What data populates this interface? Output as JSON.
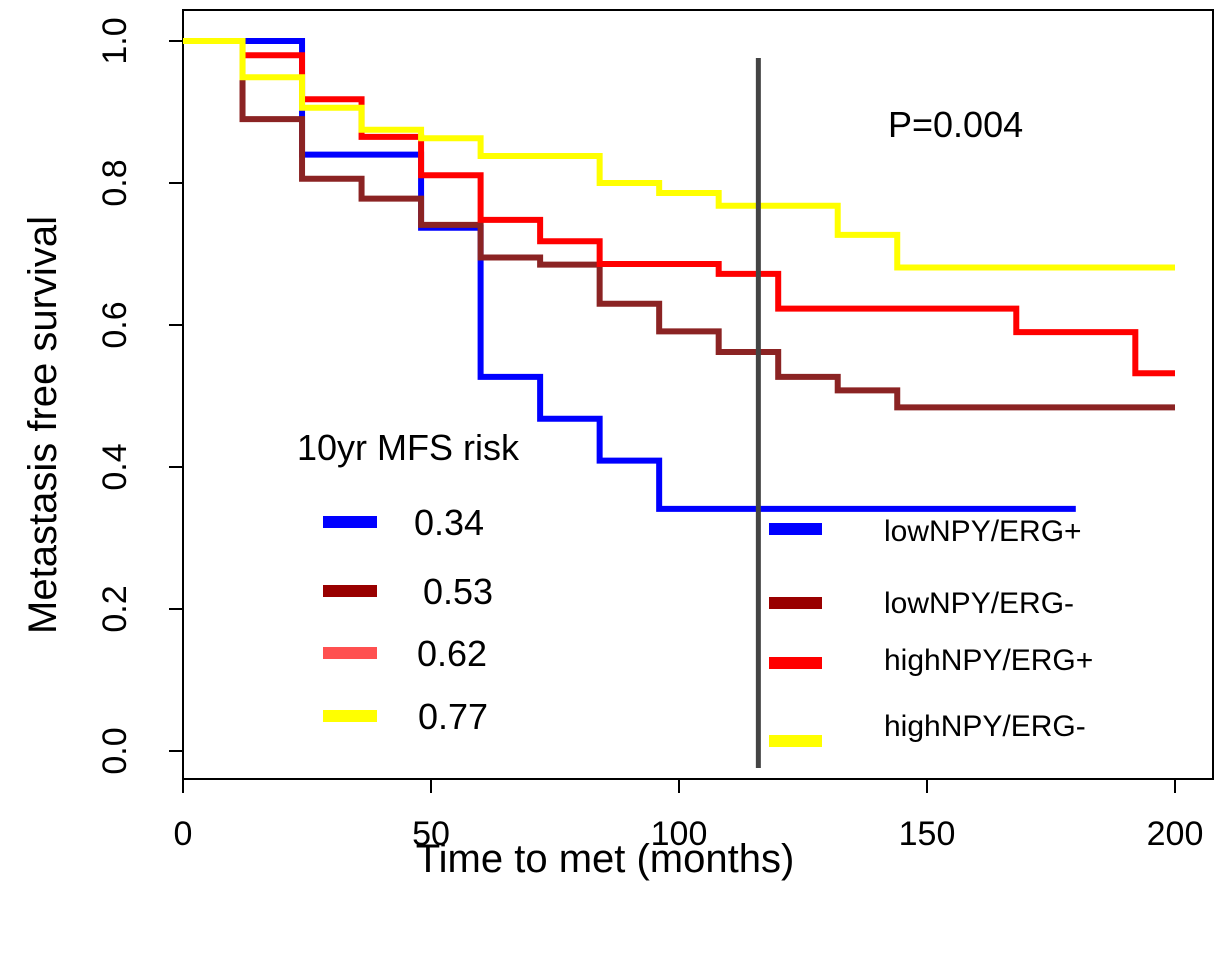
{
  "chart_data": {
    "type": "line",
    "subtype": "kaplan-meier-step",
    "xlabel": "Time to met (months)",
    "ylabel": "Metastasis free survival",
    "xlim": [
      0,
      200
    ],
    "ylim": [
      0,
      1.0
    ],
    "x_ticks": [
      "0",
      "50",
      "100",
      "150",
      "200"
    ],
    "y_ticks": [
      "0.0",
      "0.2",
      "0.4",
      "0.6",
      "0.8",
      "1.0"
    ],
    "grid": false,
    "annotation": "P=0.004",
    "vline_x": 116,
    "series": [
      {
        "name": "lowNPY/ERG+",
        "color": "#0000ff",
        "x": [
          0,
          24,
          24,
          48,
          48,
          60,
          60,
          72,
          72,
          84,
          84,
          96,
          96,
          180
        ],
        "y": [
          1.0,
          1.0,
          0.84,
          0.84,
          0.737,
          0.737,
          0.527,
          0.527,
          0.468,
          0.468,
          0.409,
          0.409,
          0.341,
          0.341
        ]
      },
      {
        "name": "lowNPY/ERG-",
        "color": "#8b2323",
        "x": [
          0,
          12,
          12,
          24,
          24,
          36,
          36,
          48,
          48,
          60,
          60,
          72,
          72,
          84,
          84,
          96,
          96,
          108,
          108,
          120,
          120,
          132,
          132,
          144,
          144,
          200
        ],
        "y": [
          1.0,
          1.0,
          0.89,
          0.89,
          0.806,
          0.806,
          0.778,
          0.778,
          0.741,
          0.741,
          0.695,
          0.695,
          0.685,
          0.685,
          0.63,
          0.63,
          0.591,
          0.591,
          0.562,
          0.562,
          0.527,
          0.527,
          0.508,
          0.508,
          0.484,
          0.484
        ]
      },
      {
        "name": "highNPY/ERG+",
        "color": "#ff0000",
        "x": [
          0,
          12,
          12,
          24,
          24,
          36,
          36,
          48,
          48,
          60,
          60,
          72,
          72,
          84,
          84,
          108,
          108,
          120,
          120,
          168,
          168,
          192,
          192,
          200
        ],
        "y": [
          1.0,
          1.0,
          0.98,
          0.98,
          0.918,
          0.918,
          0.865,
          0.865,
          0.811,
          0.811,
          0.748,
          0.748,
          0.718,
          0.718,
          0.686,
          0.686,
          0.672,
          0.672,
          0.623,
          0.623,
          0.59,
          0.59,
          0.532,
          0.532
        ]
      },
      {
        "name": "highNPY/ERG-",
        "color": "#ffff00",
        "x": [
          0,
          12,
          12,
          24,
          24,
          36,
          36,
          48,
          48,
          60,
          60,
          84,
          84,
          96,
          96,
          108,
          108,
          132,
          132,
          144,
          144,
          200
        ],
        "y": [
          1.0,
          1.0,
          0.949,
          0.949,
          0.906,
          0.906,
          0.875,
          0.875,
          0.863,
          0.863,
          0.838,
          0.838,
          0.8,
          0.8,
          0.786,
          0.786,
          0.768,
          0.768,
          0.727,
          0.727,
          0.681,
          0.681
        ]
      }
    ],
    "risk_table": {
      "title": "10yr MFS risk",
      "entries": [
        {
          "value": "0.34",
          "color": "#0000ff"
        },
        {
          "value": "0.53",
          "color": "#990000"
        },
        {
          "value": "0.62",
          "color": "#ff5050"
        },
        {
          "value": "0.77",
          "color": "#ffff00"
        }
      ]
    },
    "legend": {
      "placement": "bottom-right",
      "entries": [
        {
          "label": "lowNPY/ERG+",
          "color": "#0000ff"
        },
        {
          "label": "lowNPY/ERG-",
          "color": "#990000"
        },
        {
          "label": "highNPY/ERG+",
          "color": "#ff0000"
        },
        {
          "label": "highNPY/ERG-",
          "color": "#ffff00"
        }
      ]
    }
  }
}
